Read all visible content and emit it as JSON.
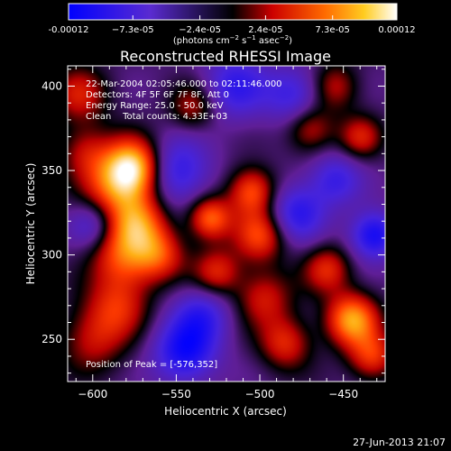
{
  "chart_data": {
    "type": "heatmap",
    "title": "Reconstructed RHESSI Image",
    "xlabel": "Heliocentric X (arcsec)",
    "ylabel": "Heliocentric Y (arcsec)",
    "xlim": [
      -615,
      -425
    ],
    "ylim": [
      225,
      412
    ],
    "x_ticks": [
      -600,
      -550,
      -500,
      -450
    ],
    "y_ticks": [
      250,
      300,
      350,
      400
    ],
    "colorbar": {
      "range": [
        -0.00012,
        0.00012
      ],
      "tick_values": [
        -0.00012,
        -7.3e-05,
        -2.4e-05,
        2.4e-05,
        7.3e-05,
        0.00012
      ],
      "tick_labels": [
        "-0.00012",
        "−7.3e-05",
        "−2.4e-05",
        "2.4e-05",
        "7.3e-05",
        "0.00012"
      ],
      "units_text": "(photons cm",
      "units_exp1": "−2",
      "units_mid": " s",
      "units_exp2": "−1",
      "units_mid2": " asec",
      "units_exp3": "−2",
      "units_end": ")"
    },
    "info_lines": [
      "22-Mar-2004 02:05:46.000 to 02:11:46.000",
      "Detectors: 4F 5F 6F 7F 8F, Att 0",
      "Energy Range: 25.0 - 50.0 keV",
      "Clean    Total counts: 4.33E+03"
    ],
    "peak_label": "Position of Peak = [-576,352]",
    "sources": [
      {
        "x": -576,
        "y": 352,
        "amp": 1.0,
        "r": 12
      },
      {
        "x": -588,
        "y": 340,
        "amp": 0.55,
        "r": 14
      },
      {
        "x": -573,
        "y": 320,
        "amp": 0.6,
        "r": 12
      },
      {
        "x": -582,
        "y": 300,
        "amp": 0.6,
        "r": 14
      },
      {
        "x": -560,
        "y": 300,
        "amp": 0.5,
        "r": 11
      },
      {
        "x": -585,
        "y": 270,
        "amp": 0.45,
        "r": 13
      },
      {
        "x": -600,
        "y": 250,
        "amp": 0.4,
        "r": 14
      },
      {
        "x": -608,
        "y": 395,
        "amp": 0.45,
        "r": 12
      },
      {
        "x": -605,
        "y": 362,
        "amp": 0.35,
        "r": 11
      },
      {
        "x": -530,
        "y": 322,
        "amp": 0.7,
        "r": 9
      },
      {
        "x": -526,
        "y": 290,
        "amp": 0.5,
        "r": 10
      },
      {
        "x": -540,
        "y": 388,
        "amp": 0.4,
        "r": 10
      },
      {
        "x": -505,
        "y": 338,
        "amp": 0.65,
        "r": 10
      },
      {
        "x": -500,
        "y": 312,
        "amp": 0.6,
        "r": 11
      },
      {
        "x": -498,
        "y": 275,
        "amp": 0.45,
        "r": 12
      },
      {
        "x": -485,
        "y": 248,
        "amp": 0.5,
        "r": 11
      },
      {
        "x": -470,
        "y": 375,
        "amp": 0.45,
        "r": 10
      },
      {
        "x": -455,
        "y": 400,
        "amp": 0.4,
        "r": 10
      },
      {
        "x": -445,
        "y": 262,
        "amp": 0.85,
        "r": 11
      },
      {
        "x": -460,
        "y": 292,
        "amp": 0.5,
        "r": 10
      },
      {
        "x": -440,
        "y": 370,
        "amp": 0.45,
        "r": 9
      },
      {
        "x": -433,
        "y": 240,
        "amp": 0.55,
        "r": 10
      },
      {
        "x": -432,
        "y": 312,
        "amp": -0.7,
        "r": 10
      },
      {
        "x": -545,
        "y": 243,
        "amp": -0.7,
        "r": 13
      },
      {
        "x": -550,
        "y": 350,
        "amp": -0.55,
        "r": 14
      },
      {
        "x": -515,
        "y": 400,
        "amp": -0.5,
        "r": 14
      },
      {
        "x": -478,
        "y": 325,
        "amp": -0.55,
        "r": 12
      },
      {
        "x": -535,
        "y": 265,
        "amp": -0.45,
        "r": 12
      },
      {
        "x": -600,
        "y": 318,
        "amp": -0.4,
        "r": 10
      },
      {
        "x": -480,
        "y": 395,
        "amp": -0.45,
        "r": 12
      },
      {
        "x": -455,
        "y": 345,
        "amp": -0.45,
        "r": 11
      }
    ]
  },
  "footer": {
    "timestamp": "27-Jun-2013 21:07"
  }
}
